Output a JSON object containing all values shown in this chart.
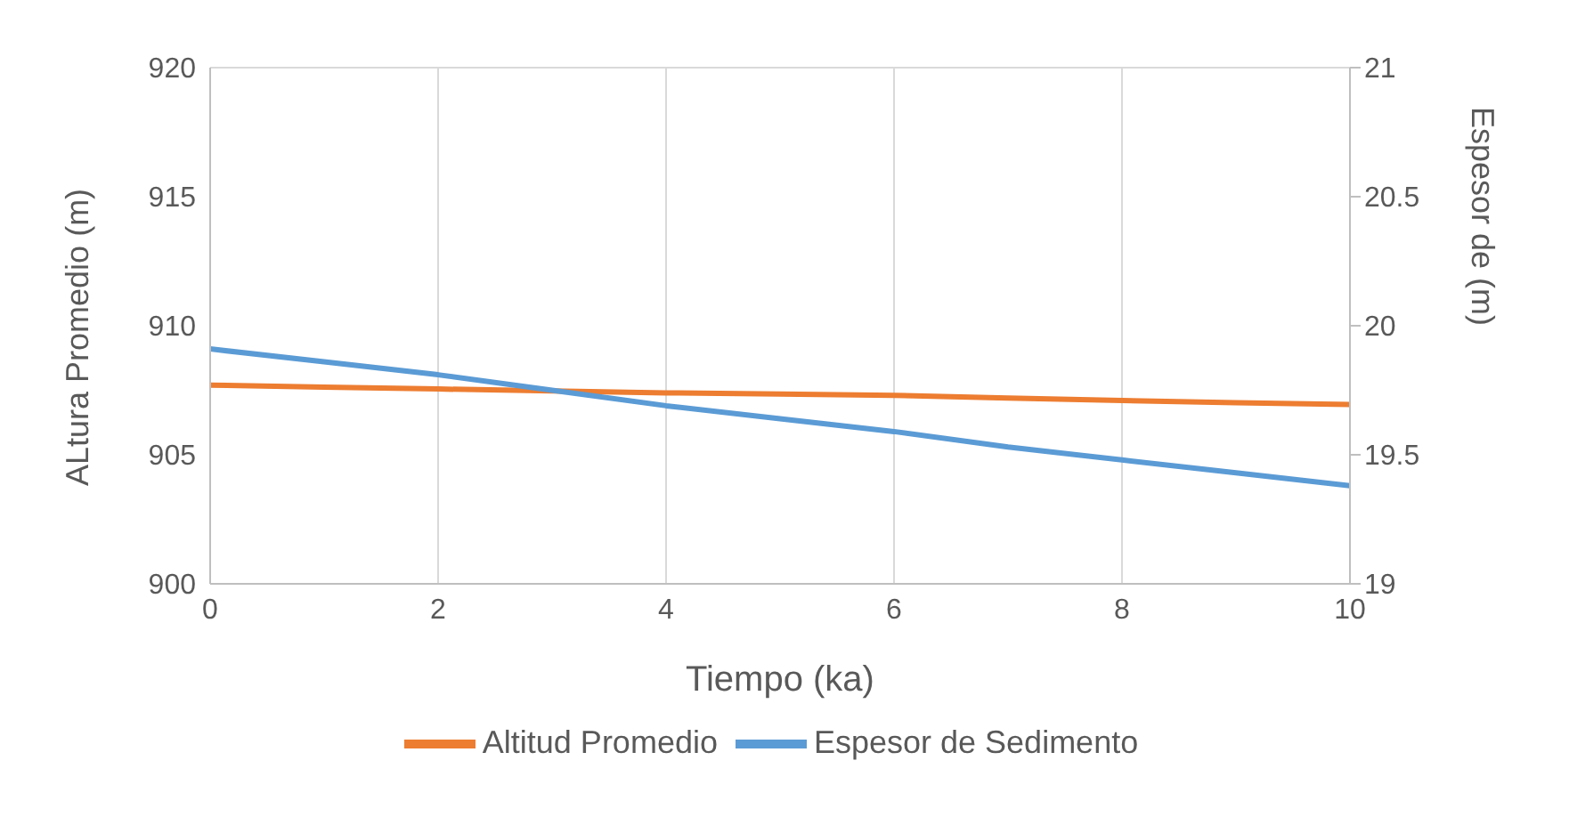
{
  "chart_data": {
    "type": "line",
    "xlabel": "Tiempo (ka)",
    "ylabel": "ALtura Promedio (m)",
    "y2label": "Espesor de  (m)",
    "x": [
      0,
      1,
      2,
      3,
      4,
      5,
      6,
      7,
      8,
      9,
      10
    ],
    "series": [
      {
        "name": "Altitud Promedio",
        "color": "#ed7d31",
        "values": [
          907.7,
          907.62,
          907.55,
          907.47,
          907.4,
          907.35,
          907.3,
          907.2,
          907.1,
          907.02,
          906.95
        ]
      },
      {
        "name": "Espesor de Sedimento",
        "color": "#5b9bd5",
        "axis": "y2",
        "values": [
          19.91,
          19.86,
          19.81,
          19.75,
          19.69,
          19.64,
          19.59,
          19.53,
          19.48,
          19.43,
          19.38
        ]
      }
    ],
    "xlim": [
      0,
      10
    ],
    "xticks": [
      0,
      2,
      4,
      6,
      8,
      10
    ],
    "ylim": [
      900,
      920
    ],
    "yticks": [
      900,
      905,
      910,
      915,
      920
    ],
    "y2lim": [
      19,
      21
    ],
    "y2ticks": [
      19,
      19.5,
      20,
      20.5,
      21
    ],
    "grid": true,
    "legend": "bottom",
    "marker": "none",
    "line_style": "solid"
  }
}
